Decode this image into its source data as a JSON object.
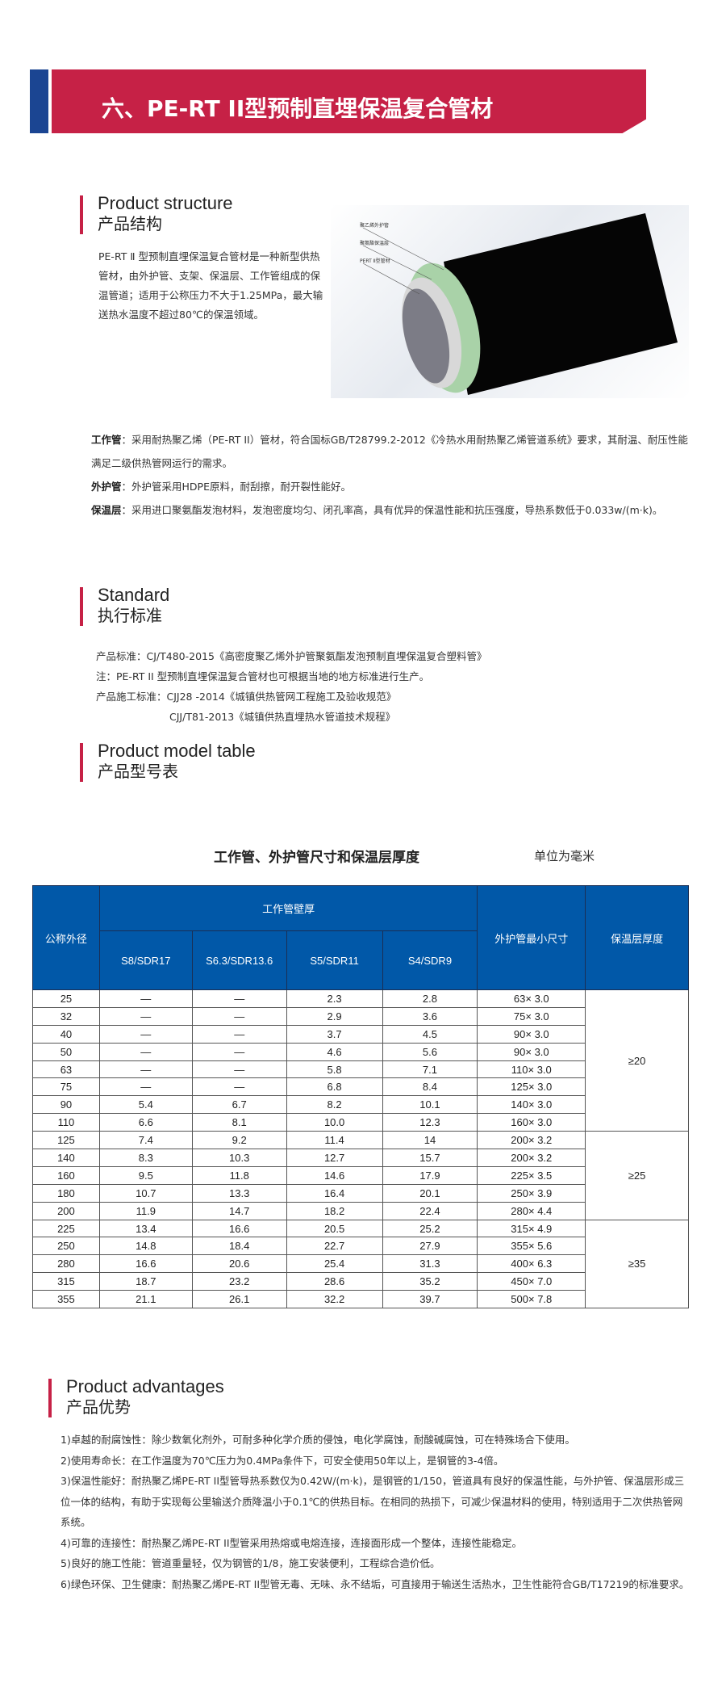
{
  "header": {
    "title": "六、PE-RT II型预制直埋保温复合管材",
    "accent": "#c62146",
    "blue": "#1b4592"
  },
  "structure": {
    "en": "Product structure",
    "cn": "产品结构",
    "intro": "PE-RT Ⅱ 型预制直埋保温复合管材是一种新型供热管材，由外护管、支架、保温层、工作管组成的保温管道；适用于公称压力不大于1.25MPa，最大输送热水温度不超过80℃的保温领域。",
    "image_labels": [
      "聚乙烯外护管",
      "聚氨酯保温层",
      "PERT Ⅱ型管材"
    ],
    "details": [
      {
        "label": "工作管",
        "text": "：采用耐热聚乙烯（PE-RT II）管材，符合国标GB/T28799.2-2012《冷热水用耐热聚乙烯管道系统》要求，其耐温、耐压性能满足二级供热管网运行的需求。"
      },
      {
        "label": "外护管",
        "text": "：外护管采用HDPE原料，耐刮擦，耐开裂性能好。"
      },
      {
        "label": "保温层",
        "text": "：采用进口聚氨酯发泡材料，发泡密度均匀、闭孔率高，具有优异的保温性能和抗压强度，导热系数低于0.033w/(m·k)。"
      }
    ]
  },
  "standard": {
    "en": "Standard",
    "cn": "执行标准",
    "lines": [
      "产品标准：CJ/T480-2015《高密度聚乙烯外护管聚氨酯发泡预制直埋保温复合塑料管》",
      "注：PE-RT II 型预制直埋保温复合管材也可根据当地的地方标准进行生产。",
      "产品施工标准：CJJ28 -2014《城镇供热管网工程施工及验收规范》",
      "CJJ/T81-2013《城镇供热直埋热水管道技术规程》"
    ]
  },
  "model": {
    "en": "Product model table",
    "cn": "产品型号表"
  },
  "table": {
    "title": "工作管、外护管尺寸和保温层厚度",
    "unit": "单位为毫米",
    "header_color": "#0158a8",
    "h_dn": "公称外径",
    "h_wall": "工作管壁厚",
    "h_outer": "外护管最小尺寸",
    "h_ins": "保温层厚度",
    "sub": [
      "S8/SDR17",
      "S6.3/SDR13.6",
      "S5/SDR11",
      "S4/SDR9"
    ],
    "rows": [
      [
        "25",
        "—",
        "—",
        "2.3",
        "2.8",
        "63× 3.0"
      ],
      [
        "32",
        "—",
        "—",
        "2.9",
        "3.6",
        "75× 3.0"
      ],
      [
        "40",
        "—",
        "—",
        "3.7",
        "4.5",
        "90× 3.0"
      ],
      [
        "50",
        "—",
        "—",
        "4.6",
        "5.6",
        "90× 3.0"
      ],
      [
        "63",
        "—",
        "—",
        "5.8",
        "7.1",
        "110× 3.0"
      ],
      [
        "75",
        "—",
        "—",
        "6.8",
        "8.4",
        "125× 3.0"
      ],
      [
        "90",
        "5.4",
        "6.7",
        "8.2",
        "10.1",
        "140× 3.0"
      ],
      [
        "110",
        "6.6",
        "8.1",
        "10.0",
        "12.3",
        "160× 3.0"
      ],
      [
        "125",
        "7.4",
        "9.2",
        "11.4",
        "14",
        "200× 3.2"
      ],
      [
        "140",
        "8.3",
        "10.3",
        "12.7",
        "15.7",
        "200× 3.2"
      ],
      [
        "160",
        "9.5",
        "11.8",
        "14.6",
        "17.9",
        "225× 3.5"
      ],
      [
        "180",
        "10.7",
        "13.3",
        "16.4",
        "20.1",
        "250× 3.9"
      ],
      [
        "200",
        "11.9",
        "14.7",
        "18.2",
        "22.4",
        "280× 4.4"
      ],
      [
        "225",
        "13.4",
        "16.6",
        "20.5",
        "25.2",
        "315× 4.9"
      ],
      [
        "250",
        "14.8",
        "18.4",
        "22.7",
        "27.9",
        "355× 5.6"
      ],
      [
        "280",
        "16.6",
        "20.6",
        "25.4",
        "31.3",
        "400× 6.3"
      ],
      [
        "315",
        "18.7",
        "23.2",
        "28.6",
        "35.2",
        "450× 7.0"
      ],
      [
        "355",
        "21.1",
        "26.1",
        "32.2",
        "39.7",
        "500× 7.8"
      ]
    ],
    "groups": [
      {
        "label": "≥20",
        "span": 8
      },
      {
        "label": "≥25",
        "span": 5
      },
      {
        "label": "≥35",
        "span": 5
      }
    ]
  },
  "advantages": {
    "en": "Product advantages",
    "cn": "产品优势",
    "items": [
      "1)卓越的耐腐蚀性：除少数氧化剂外，可耐多种化学介质的侵蚀，电化学腐蚀，耐酸碱腐蚀，可在特殊场合下使用。",
      "2)使用寿命长：在工作温度为70℃压力为0.4MPa条件下，可安全使用50年以上，是钢管的3-4倍。",
      "3)保温性能好：耐热聚乙烯PE-RT II型管导热系数仅为0.42W/(m·k)，是钢管的1/150，管道具有良好的保温性能，与外护管、保温层形成三位一体的结构，有助于实现每公里输送介质降温小于0.1℃的供热目标。在相同的热损下，可减少保温材料的使用，特别适用于二次供热管网系统。",
      "4)可靠的连接性：耐热聚乙烯PE-RT II型管采用热熔或电熔连接，连接面形成一个整体，连接性能稳定。",
      "5)良好的施工性能：管道重量轻，仅为钢管的1/8，施工安装便利，工程综合造价低。",
      "6)绿色环保、卫生健康：耐热聚乙烯PE-RT II型管无毒、无味、永不结垢，可直接用于输送生活热水，卫生性能符合GB/T17219的标准要求。"
    ]
  }
}
